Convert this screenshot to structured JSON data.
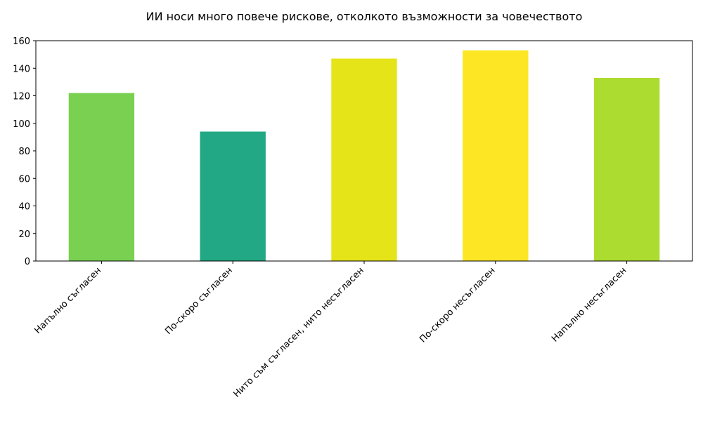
{
  "chart_data": {
    "type": "bar",
    "title": "ИИ носи много повече рискове, отколкото възможности за човечеството",
    "categories": [
      "Напълно съгласен",
      "По-скоро съгласен",
      "Нито съм съгласен, нито несъгласен",
      "По-скоро несъгласен",
      "Напълно несъгласен"
    ],
    "values": [
      122,
      94,
      147,
      153,
      133
    ],
    "colors": [
      "#7ad151",
      "#22a884",
      "#e5e419",
      "#fde725",
      "#addc30"
    ],
    "ylim": [
      0,
      160
    ],
    "yticks": [
      0,
      20,
      40,
      60,
      80,
      100,
      120,
      140,
      160
    ],
    "grid": false
  }
}
